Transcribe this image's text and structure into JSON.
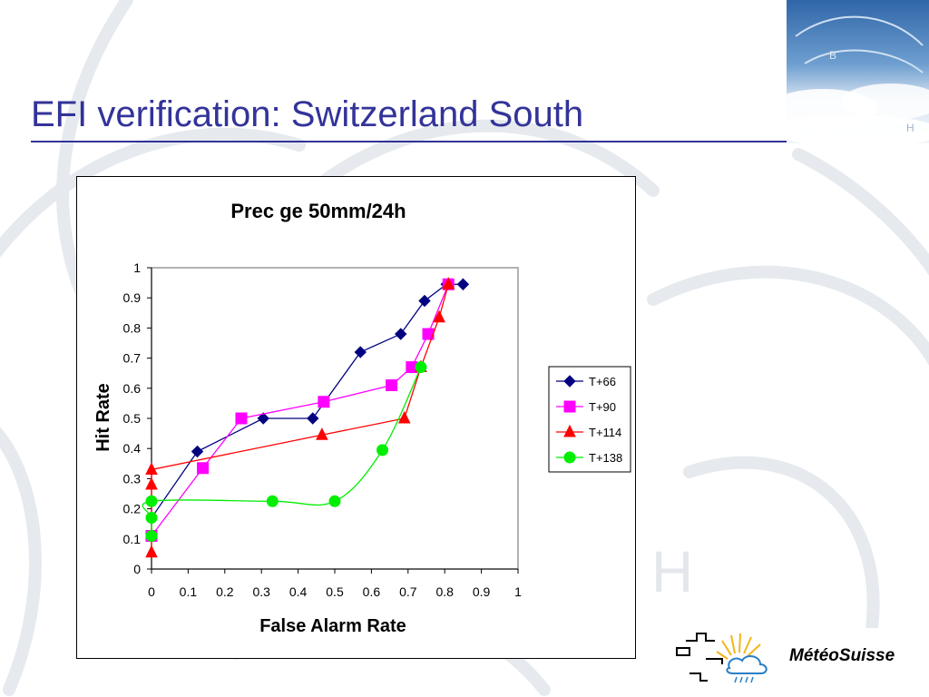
{
  "slide": {
    "title": "EFI verification: Switzerland South"
  },
  "logo": {
    "text": "MétéoSuisse"
  },
  "colors": {
    "title": "#333399",
    "t66": "#000080",
    "t90": "#ff00ff",
    "t114": "#ff0000",
    "t138": "#00ee00"
  },
  "chart_data": {
    "type": "line",
    "title": "Prec ge 50mm/24h",
    "xlabel": "False Alarm Rate",
    "ylabel": "Hit Rate",
    "xlim": [
      0,
      1
    ],
    "ylim": [
      0,
      1
    ],
    "xticks": [
      "0",
      "0.1",
      "0.2",
      "0.3",
      "0.4",
      "0.5",
      "0.6",
      "0.7",
      "0.8",
      "0.9",
      "1"
    ],
    "yticks": [
      "0",
      "0.1",
      "0.2",
      "0.3",
      "0.4",
      "0.5",
      "0.6",
      "0.7",
      "0.8",
      "0.9",
      "1"
    ],
    "grid": false,
    "legend": "right",
    "series": [
      {
        "name": "T+66",
        "color": "#000080",
        "marker": "diamond",
        "smooth": false,
        "points": [
          [
            0,
            0.17
          ],
          [
            0.125,
            0.39
          ],
          [
            0.305,
            0.5
          ],
          [
            0.44,
            0.5
          ],
          [
            0.57,
            0.72
          ],
          [
            0.68,
            0.78
          ],
          [
            0.745,
            0.89
          ],
          [
            0.805,
            0.945
          ],
          [
            0.85,
            0.945
          ]
        ]
      },
      {
        "name": "T+90",
        "color": "#ff00ff",
        "marker": "square",
        "smooth": false,
        "points": [
          [
            0,
            0.11
          ],
          [
            0.14,
            0.335
          ],
          [
            0.245,
            0.5
          ],
          [
            0.47,
            0.555
          ],
          [
            0.655,
            0.61
          ],
          [
            0.71,
            0.67
          ],
          [
            0.755,
            0.78
          ],
          [
            0.81,
            0.945
          ]
        ]
      },
      {
        "name": "T+114",
        "color": "#ff0000",
        "marker": "triangle",
        "smooth": false,
        "points": [
          [
            0,
            0.055
          ],
          [
            0,
            0.28
          ],
          [
            0,
            0.33
          ],
          [
            0.465,
            0.445
          ],
          [
            0.69,
            0.5
          ],
          [
            0.735,
            0.67
          ],
          [
            0.785,
            0.835
          ],
          [
            0.81,
            0.945
          ]
        ]
      },
      {
        "name": "T+138",
        "color": "#00ee00",
        "marker": "circle",
        "smooth": true,
        "points": [
          [
            0,
            0.11
          ],
          [
            0,
            0.17
          ],
          [
            0,
            0.225
          ],
          [
            0.33,
            0.225
          ],
          [
            0.5,
            0.225
          ],
          [
            0.63,
            0.395
          ],
          [
            0.735,
            0.67
          ]
        ]
      }
    ]
  }
}
